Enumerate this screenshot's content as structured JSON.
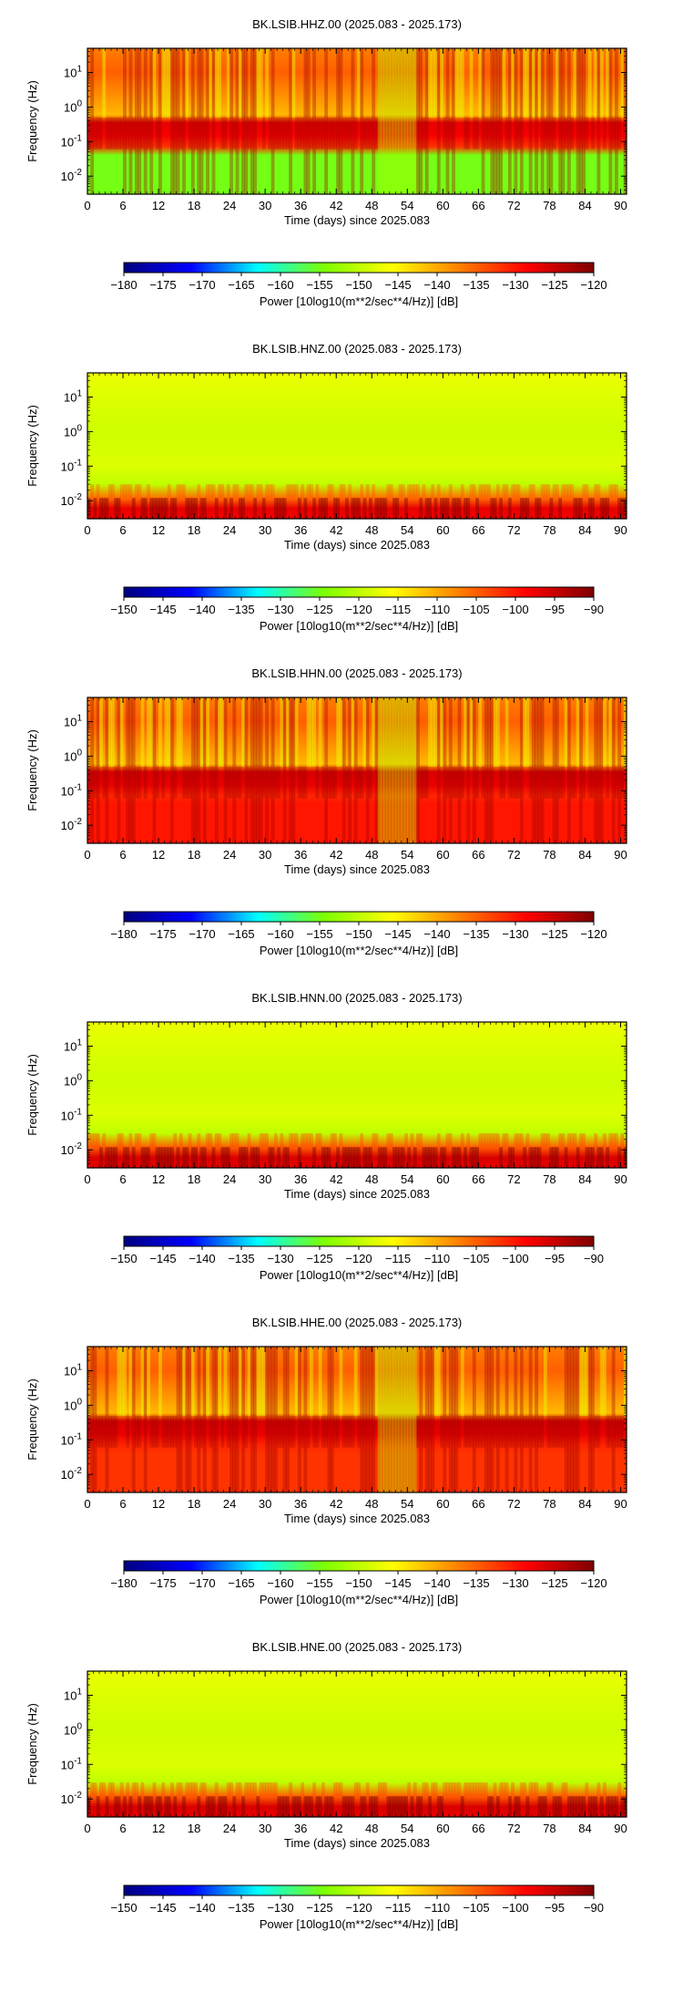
{
  "chart_data": [
    {
      "type": "heatmap",
      "title": "BK.LSIB.HHZ.00 (2025.083 - 2025.173)",
      "xlabel": "Time (days) since 2025.083",
      "ylabel": "Frequency (Hz)",
      "xlim": [
        0,
        91
      ],
      "ylim": [
        0.003,
        50
      ],
      "yscale": "log",
      "xticks": [
        "0",
        "6",
        "12",
        "18",
        "24",
        "30",
        "36",
        "42",
        "48",
        "54",
        "60",
        "66",
        "72",
        "78",
        "84",
        "90"
      ],
      "yticks": [
        "10^1",
        "10^0",
        "10^-1",
        "10^-2"
      ],
      "colorbar": {
        "label": "Power [10log10(m**2/sec**4/Hz)] [dB]",
        "min": -180,
        "max": -120,
        "ticks": [
          "−180",
          "−175",
          "−170",
          "−165",
          "−160",
          "−155",
          "−150",
          "−145",
          "−140",
          "−135",
          "−130",
          "−125",
          "−120"
        ]
      },
      "colormap": [
        "#00007f",
        "#0000ff",
        "#00ffff",
        "#7fff00",
        "#ffff00",
        "#ff7f00",
        "#ff0000",
        "#7f0000"
      ],
      "features": {
        "high_band_hz": [
          1,
          50
        ],
        "high_band_db": -135,
        "microseism_band_hz": [
          0.08,
          0.5
        ],
        "microseism_db": -128,
        "low_band_hz": [
          0.003,
          0.06
        ],
        "low_band_db": -155,
        "quiet_interval_days": [
          49,
          55
        ]
      }
    },
    {
      "type": "heatmap",
      "title": "BK.LSIB.HNZ.00 (2025.083 - 2025.173)",
      "xlabel": "Time (days) since 2025.083",
      "ylabel": "Frequency (Hz)",
      "xlim": [
        0,
        91
      ],
      "ylim": [
        0.003,
        50
      ],
      "yscale": "log",
      "xticks": [
        "0",
        "6",
        "12",
        "18",
        "24",
        "30",
        "36",
        "42",
        "48",
        "54",
        "60",
        "66",
        "72",
        "78",
        "84",
        "90"
      ],
      "yticks": [
        "10^1",
        "10^0",
        "10^-1",
        "10^-2"
      ],
      "colorbar": {
        "label": "Power [10log10(m**2/sec**4/Hz)] [dB]",
        "min": -150,
        "max": -90,
        "ticks": [
          "−150",
          "−145",
          "−140",
          "−135",
          "−130",
          "−125",
          "−120",
          "−115",
          "−110",
          "−105",
          "−100",
          "−95",
          "−90"
        ]
      },
      "colormap": [
        "#00007f",
        "#0000ff",
        "#00ffff",
        "#7fff00",
        "#ffff00",
        "#ff7f00",
        "#ff0000",
        "#7f0000"
      ],
      "features": {
        "background_db": -118,
        "low_freq_rise_hz": [
          0.003,
          0.02
        ],
        "low_freq_db": -98
      }
    },
    {
      "type": "heatmap",
      "title": "BK.LSIB.HHN.00 (2025.083 - 2025.173)",
      "xlabel": "Time (days) since 2025.083",
      "ylabel": "Frequency (Hz)",
      "xlim": [
        0,
        91
      ],
      "ylim": [
        0.003,
        50
      ],
      "yscale": "log",
      "xticks": [
        "0",
        "6",
        "12",
        "18",
        "24",
        "30",
        "36",
        "42",
        "48",
        "54",
        "60",
        "66",
        "72",
        "78",
        "84",
        "90"
      ],
      "yticks": [
        "10^1",
        "10^0",
        "10^-1",
        "10^-2"
      ],
      "colorbar": {
        "label": "Power [10log10(m**2/sec**4/Hz)] [dB]",
        "min": -180,
        "max": -120,
        "ticks": [
          "−180",
          "−175",
          "−170",
          "−165",
          "−160",
          "−155",
          "−150",
          "−145",
          "−140",
          "−135",
          "−130",
          "−125",
          "−120"
        ]
      },
      "colormap": [
        "#00007f",
        "#0000ff",
        "#00ffff",
        "#7fff00",
        "#ffff00",
        "#ff7f00",
        "#ff0000",
        "#7f0000"
      ],
      "features": {
        "high_band_db": -135,
        "microseism_db": -127,
        "low_band_db": -130,
        "quiet_interval_days": [
          49,
          55
        ]
      }
    },
    {
      "type": "heatmap",
      "title": "BK.LSIB.HNN.00 (2025.083 - 2025.173)",
      "xlabel": "Time (days) since 2025.083",
      "ylabel": "Frequency (Hz)",
      "xlim": [
        0,
        91
      ],
      "ylim": [
        0.003,
        50
      ],
      "yscale": "log",
      "xticks": [
        "0",
        "6",
        "12",
        "18",
        "24",
        "30",
        "36",
        "42",
        "48",
        "54",
        "60",
        "66",
        "72",
        "78",
        "84",
        "90"
      ],
      "yticks": [
        "10^1",
        "10^0",
        "10^-1",
        "10^-2"
      ],
      "colorbar": {
        "label": "Power [10log10(m**2/sec**4/Hz)] [dB]",
        "min": -150,
        "max": -90,
        "ticks": [
          "−150",
          "−145",
          "−140",
          "−135",
          "−130",
          "−125",
          "−120",
          "−115",
          "−110",
          "−105",
          "−100",
          "−95",
          "−90"
        ]
      },
      "colormap": [
        "#00007f",
        "#0000ff",
        "#00ffff",
        "#7fff00",
        "#ffff00",
        "#ff7f00",
        "#ff0000",
        "#7f0000"
      ],
      "features": {
        "background_db": -118,
        "low_freq_db": -97
      }
    },
    {
      "type": "heatmap",
      "title": "BK.LSIB.HHE.00 (2025.083 - 2025.173)",
      "xlabel": "Time (days) since 2025.083",
      "ylabel": "Frequency (Hz)",
      "xlim": [
        0,
        91
      ],
      "ylim": [
        0.003,
        50
      ],
      "yscale": "log",
      "xticks": [
        "0",
        "6",
        "12",
        "18",
        "24",
        "30",
        "36",
        "42",
        "48",
        "54",
        "60",
        "66",
        "72",
        "78",
        "84",
        "90"
      ],
      "yticks": [
        "10^1",
        "10^0",
        "10^-1",
        "10^-2"
      ],
      "colorbar": {
        "label": "Power [10log10(m**2/sec**4/Hz)] [dB]",
        "min": -180,
        "max": -120,
        "ticks": [
          "−180",
          "−175",
          "−170",
          "−165",
          "−160",
          "−155",
          "−150",
          "−145",
          "−140",
          "−135",
          "−130",
          "−125",
          "−120"
        ]
      },
      "colormap": [
        "#00007f",
        "#0000ff",
        "#00ffff",
        "#7fff00",
        "#ffff00",
        "#ff7f00",
        "#ff0000",
        "#7f0000"
      ],
      "features": {
        "high_band_db": -135,
        "microseism_db": -127,
        "low_band_db": -132,
        "quiet_interval_days": [
          49,
          55
        ]
      }
    },
    {
      "type": "heatmap",
      "title": "BK.LSIB.HNE.00 (2025.083 - 2025.173)",
      "xlabel": "Time (days) since 2025.083",
      "ylabel": "Frequency (Hz)",
      "xlim": [
        0,
        91
      ],
      "ylim": [
        0.003,
        50
      ],
      "yscale": "log",
      "xticks": [
        "0",
        "6",
        "12",
        "18",
        "24",
        "30",
        "36",
        "42",
        "48",
        "54",
        "60",
        "66",
        "72",
        "78",
        "84",
        "90"
      ],
      "yticks": [
        "10^1",
        "10^0",
        "10^-1",
        "10^-2"
      ],
      "colorbar": {
        "label": "Power [10log10(m**2/sec**4/Hz)] [dB]",
        "min": -150,
        "max": -90,
        "ticks": [
          "−150",
          "−145",
          "−140",
          "−135",
          "−130",
          "−125",
          "−120",
          "−115",
          "−110",
          "−105",
          "−100",
          "−95",
          "−90"
        ]
      },
      "colormap": [
        "#00007f",
        "#0000ff",
        "#00ffff",
        "#7fff00",
        "#ffff00",
        "#ff7f00",
        "#ff0000",
        "#7f0000"
      ],
      "features": {
        "background_db": -118,
        "low_freq_db": -97
      }
    }
  ]
}
